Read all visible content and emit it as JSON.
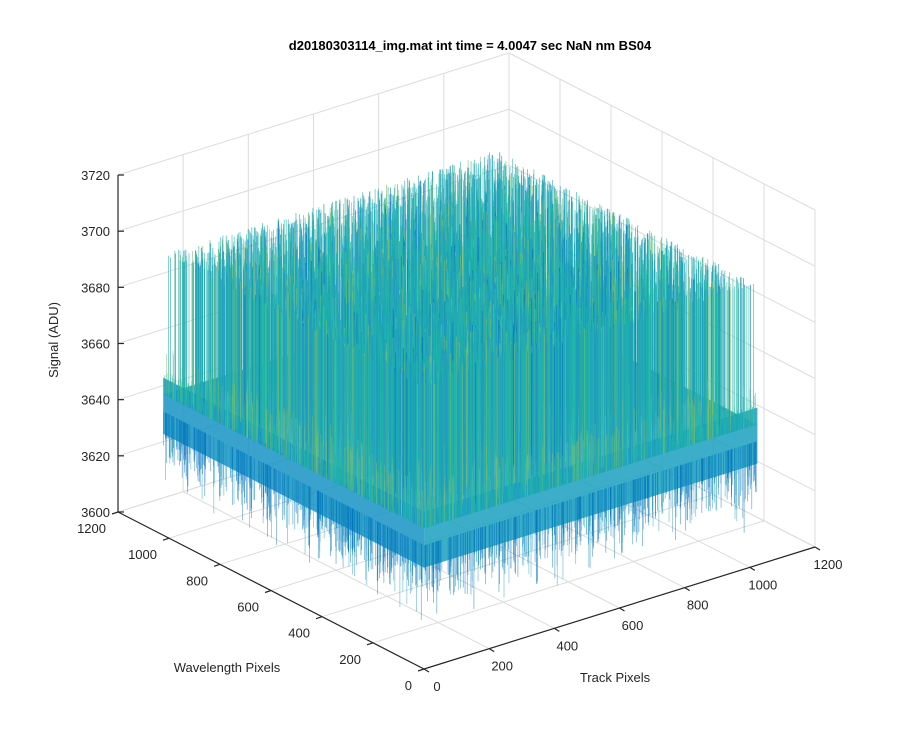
{
  "chart_data": {
    "type": "surface",
    "title": "d20180303114_img.mat int time = 4.0047 sec  NaN nm BS04",
    "xlabel": "Track Pixels",
    "ylabel": "Wavelength Pixels",
    "zlabel": "Signal (ADU)",
    "xlim": [
      0,
      1200
    ],
    "ylim": [
      0,
      1200
    ],
    "zlim": [
      3600,
      3720
    ],
    "x_ticks": [
      0,
      200,
      400,
      600,
      800,
      1000,
      1200
    ],
    "y_ticks": [
      0,
      200,
      400,
      600,
      800,
      1000,
      1200
    ],
    "z_ticks": [
      3600,
      3620,
      3640,
      3660,
      3680,
      3700,
      3720
    ],
    "x_data_range": [
      1,
      1024
    ],
    "y_data_range": [
      1,
      1024
    ],
    "signal_mean": 3650,
    "signal_spread": [
      3620,
      3690
    ],
    "grid": true,
    "colormap": [
      "#0072BD",
      "#1E9BC2",
      "#22B5A8",
      "#7FBF6A",
      "#C9C15A"
    ],
    "noise_description": "random pixel noise around mean"
  }
}
